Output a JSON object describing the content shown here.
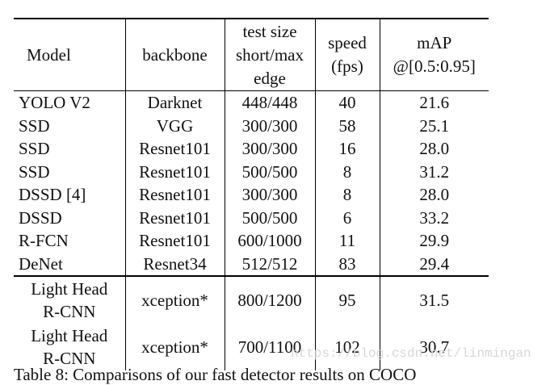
{
  "table": {
    "headers": {
      "model": "Model",
      "backbone": "backbone",
      "test_size": [
        "test size",
        "short/max",
        "edge"
      ],
      "speed": [
        "speed",
        "(fps)"
      ],
      "map": [
        "mAP",
        "@[0.5:0.95]"
      ]
    },
    "rows": [
      {
        "model": "YOLO V2",
        "backbone": "Darknet",
        "test_size": "448/448",
        "speed": "40",
        "map": "21.6"
      },
      {
        "model": "SSD",
        "backbone": "VGG",
        "test_size": "300/300",
        "speed": "58",
        "map": "25.1"
      },
      {
        "model": "SSD",
        "backbone": "Resnet101",
        "test_size": "300/300",
        "speed": "16",
        "map": "28.0"
      },
      {
        "model": "SSD",
        "backbone": "Resnet101",
        "test_size": "500/500",
        "speed": "8",
        "map": "31.2"
      },
      {
        "model": "DSSD [4]",
        "backbone": "Resnet101",
        "test_size": "300/300",
        "speed": "8",
        "map": "28.0"
      },
      {
        "model": "DSSD",
        "backbone": "Resnet101",
        "test_size": "500/500",
        "speed": "6",
        "map": "33.2"
      },
      {
        "model": "R-FCN",
        "backbone": "Resnet101",
        "test_size": "600/1000",
        "speed": "11",
        "map": "29.9"
      },
      {
        "model": "DeNet",
        "backbone": "Resnet34",
        "test_size": "512/512",
        "speed": "83",
        "map": "29.4"
      }
    ],
    "light_head_rows": [
      {
        "model": [
          "Light Head",
          "R-CNN"
        ],
        "backbone": "xception*",
        "test_size": "800/1200",
        "speed": "95",
        "map": "31.5"
      },
      {
        "model": [
          "Light Head",
          "R-CNN"
        ],
        "backbone": "xception*",
        "test_size": "700/1100",
        "speed": "102",
        "map": "30.7"
      }
    ]
  },
  "watermark": "https://blog.csdn.net/linmingan",
  "caption": "Table 8: Comparisons of our fast detector results on COCO"
}
